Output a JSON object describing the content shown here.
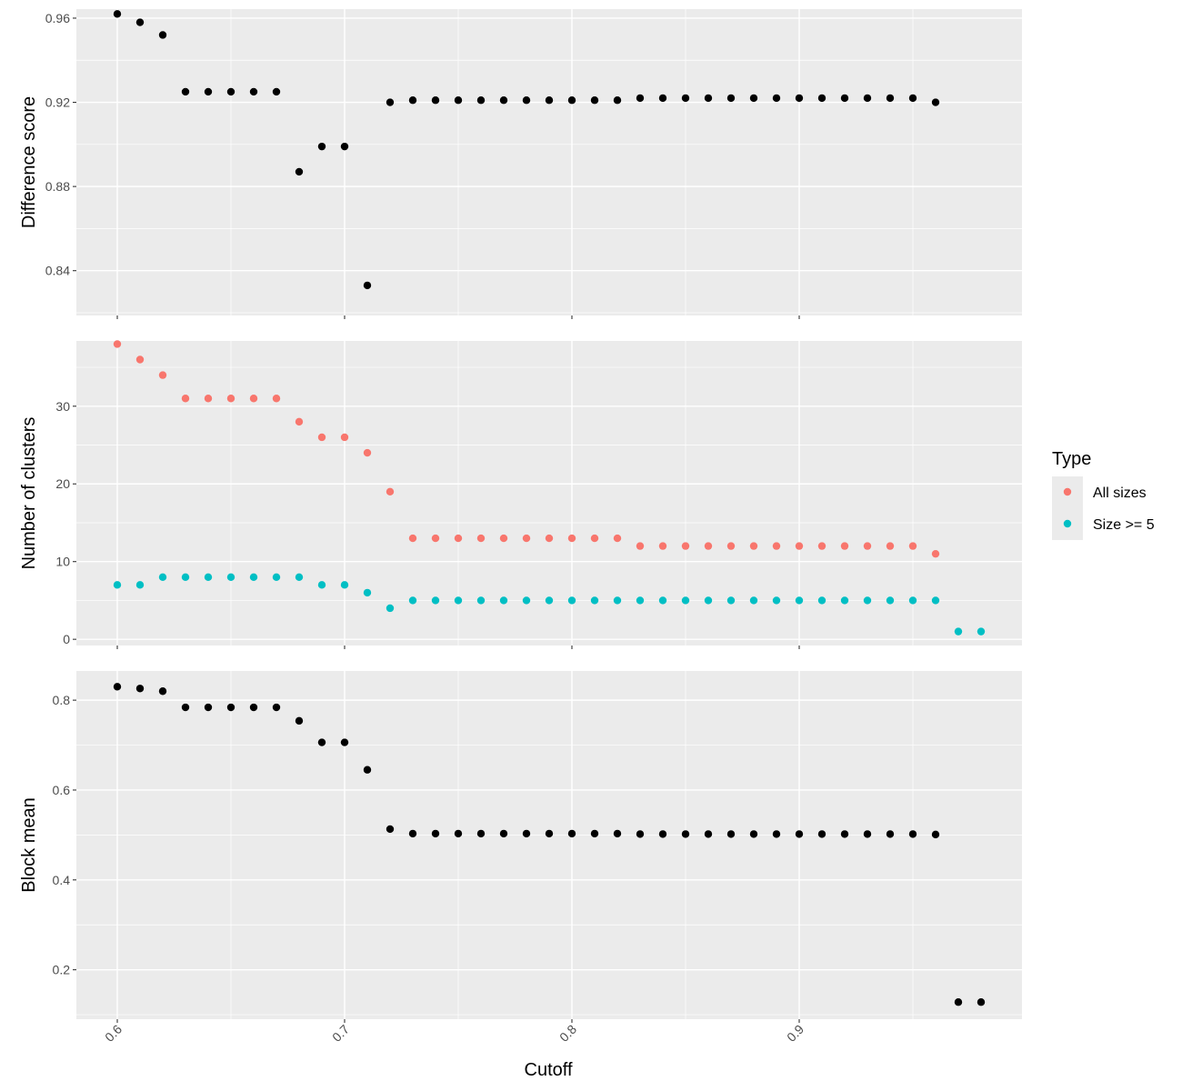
{
  "chart_data": {
    "type": "scatter",
    "x_label": "Cutoff",
    "x_ticks": [
      "0.6",
      "0.7",
      "0.8",
      "0.9"
    ],
    "x_range": [
      0.582,
      0.998
    ],
    "legend": {
      "title": "Type",
      "placement": "right",
      "entries": [
        {
          "label": "All sizes",
          "color": "#F8766D"
        },
        {
          "label": "Size >= 5",
          "color": "#00BFC4"
        }
      ]
    },
    "panels": [
      {
        "ylabel": "Difference score",
        "y_range": [
          0.8187,
          0.9643
        ],
        "y_ticks": [
          0.84,
          0.88,
          0.92,
          0.96
        ],
        "y_tick_labels": [
          "0.84",
          "0.88",
          "0.92",
          "0.96"
        ],
        "series": [
          {
            "color": "#000000",
            "x": [
              0.6,
              0.61,
              0.62,
              0.63,
              0.64,
              0.65,
              0.66,
              0.67,
              0.68,
              0.69,
              0.7,
              0.71,
              0.72,
              0.73,
              0.74,
              0.75,
              0.76,
              0.77,
              0.78,
              0.79,
              0.8,
              0.81,
              0.82,
              0.83,
              0.84,
              0.85,
              0.86,
              0.87,
              0.88,
              0.89,
              0.9,
              0.91,
              0.92,
              0.93,
              0.94,
              0.95,
              0.96
            ],
            "y": [
              0.962,
              0.958,
              0.952,
              0.925,
              0.925,
              0.925,
              0.925,
              0.925,
              0.887,
              0.899,
              0.899,
              0.833,
              0.92,
              0.921,
              0.921,
              0.921,
              0.921,
              0.921,
              0.921,
              0.921,
              0.921,
              0.921,
              0.921,
              0.922,
              0.922,
              0.922,
              0.922,
              0.922,
              0.922,
              0.922,
              0.922,
              0.922,
              0.922,
              0.922,
              0.922,
              0.922,
              0.92
            ]
          }
        ]
      },
      {
        "ylabel": "Number of clusters",
        "y_range": [
          -0.8,
          38.4
        ],
        "y_ticks": [
          0,
          10,
          20,
          30
        ],
        "y_tick_labels": [
          "0",
          "10",
          "20",
          "30"
        ],
        "series": [
          {
            "name": "All sizes",
            "color": "#F8766D",
            "x": [
              0.6,
              0.61,
              0.62,
              0.63,
              0.64,
              0.65,
              0.66,
              0.67,
              0.68,
              0.69,
              0.7,
              0.71,
              0.72,
              0.73,
              0.74,
              0.75,
              0.76,
              0.77,
              0.78,
              0.79,
              0.8,
              0.81,
              0.82,
              0.83,
              0.84,
              0.85,
              0.86,
              0.87,
              0.88,
              0.89,
              0.9,
              0.91,
              0.92,
              0.93,
              0.94,
              0.95,
              0.96
            ],
            "y": [
              38,
              36,
              34,
              31,
              31,
              31,
              31,
              31,
              28,
              26,
              26,
              24,
              19,
              13,
              13,
              13,
              13,
              13,
              13,
              13,
              13,
              13,
              13,
              12,
              12,
              12,
              12,
              12,
              12,
              12,
              12,
              12,
              12,
              12,
              12,
              12,
              11
            ]
          },
          {
            "name": "Size >= 5",
            "color": "#00BFC4",
            "x": [
              0.6,
              0.61,
              0.62,
              0.63,
              0.64,
              0.65,
              0.66,
              0.67,
              0.68,
              0.69,
              0.7,
              0.71,
              0.72,
              0.73,
              0.74,
              0.75,
              0.76,
              0.77,
              0.78,
              0.79,
              0.8,
              0.81,
              0.82,
              0.83,
              0.84,
              0.85,
              0.86,
              0.87,
              0.88,
              0.89,
              0.9,
              0.91,
              0.92,
              0.93,
              0.94,
              0.95,
              0.96,
              0.97,
              0.98
            ],
            "y": [
              7,
              7,
              8,
              8,
              8,
              8,
              8,
              8,
              8,
              7,
              7,
              6,
              4,
              5,
              5,
              5,
              5,
              5,
              5,
              5,
              5,
              5,
              5,
              5,
              5,
              5,
              5,
              5,
              5,
              5,
              5,
              5,
              5,
              5,
              5,
              5,
              5,
              1,
              1
            ]
          }
        ]
      },
      {
        "ylabel": "Block mean",
        "y_range": [
          0.09,
          0.865
        ],
        "y_ticks": [
          0.2,
          0.4,
          0.6,
          0.8
        ],
        "y_tick_labels": [
          "0.2",
          "0.4",
          "0.6",
          "0.8"
        ],
        "series": [
          {
            "color": "#000000",
            "x": [
              0.6,
              0.61,
              0.62,
              0.63,
              0.64,
              0.65,
              0.66,
              0.67,
              0.68,
              0.69,
              0.7,
              0.71,
              0.72,
              0.73,
              0.74,
              0.75,
              0.76,
              0.77,
              0.78,
              0.79,
              0.8,
              0.81,
              0.82,
              0.83,
              0.84,
              0.85,
              0.86,
              0.87,
              0.88,
              0.89,
              0.9,
              0.91,
              0.92,
              0.93,
              0.94,
              0.95,
              0.96,
              0.97,
              0.98
            ],
            "y": [
              0.83,
              0.826,
              0.82,
              0.784,
              0.784,
              0.784,
              0.784,
              0.784,
              0.754,
              0.706,
              0.706,
              0.645,
              0.513,
              0.503,
              0.503,
              0.503,
              0.503,
              0.503,
              0.503,
              0.503,
              0.503,
              0.503,
              0.503,
              0.502,
              0.502,
              0.502,
              0.502,
              0.502,
              0.502,
              0.502,
              0.502,
              0.502,
              0.502,
              0.502,
              0.502,
              0.502,
              0.501,
              0.128,
              0.128
            ]
          }
        ]
      }
    ]
  }
}
